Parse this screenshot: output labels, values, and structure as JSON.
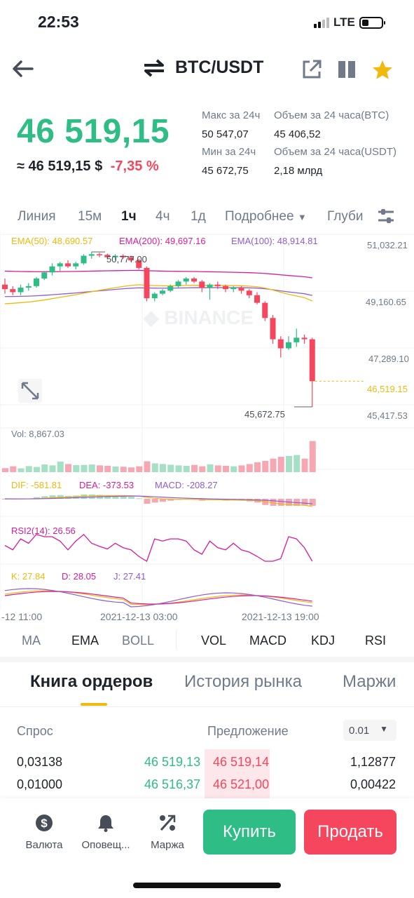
{
  "status": {
    "time": "22:53",
    "network": "LTE"
  },
  "header": {
    "pair": "BTC/USDT"
  },
  "price": {
    "last": "46 519,15",
    "usd": "≈ 46 519,15 $",
    "change": "-7,35 %",
    "high_label": "Макс за 24ч",
    "high": "50 547,07",
    "low_label": "Мин за 24ч",
    "low": "45 672,75",
    "vol_btc_label": "Объем за 24 часа(BTC)",
    "vol_btc": "45 406,52",
    "vol_usdt_label": "Объем за 24 часа(USDT)",
    "vol_usdt": "2,18 млрд"
  },
  "timeframes": {
    "line": "Линия",
    "m15": "15м",
    "h1": "1ч",
    "h4": "4ч",
    "d1": "1д",
    "more": "Подробнее",
    "depth": "Глуби"
  },
  "chart": {
    "ema50_label": "EMA(50): 48,690.57",
    "ema200_label": "EMA(200): 49,697.16",
    "ema100_label": "EMA(100): 48,914.81",
    "high_marker": "50,777.00",
    "low_marker": "45,672.75",
    "vol_label": "Vol: 8,867.03",
    "dif_label": "DIF: -581.81",
    "dea_label": "DEA: -373.53",
    "macd_label": "MACD: -208.27",
    "rsi_label": "RSI2(14): 26.56",
    "k_label": "K: 27.84",
    "d_label": "D: 28.05",
    "j_label": "J: 27.41",
    "time_labels": [
      "-12 11:00",
      "2021-12-13 03:00",
      "2021-12-13 19:00"
    ],
    "colors": {
      "up": "#2ebd85",
      "down": "#f6465d",
      "ema50": "#f0b90b",
      "ema200": "#d81b9c",
      "ema100": "#8e5bd6"
    }
  },
  "chart_data": {
    "type": "candlestick",
    "y_ticks": [
      "51,032.21",
      "49,160.65",
      "47,289.10",
      "45,417.53"
    ],
    "current_price": "46,519.15",
    "ylim": [
      45417.53,
      51032.21
    ],
    "candles": [
      [
        49700,
        49900,
        49400,
        49550
      ],
      [
        49550,
        49650,
        49350,
        49450
      ],
      [
        49450,
        49700,
        49350,
        49600
      ],
      [
        49600,
        49750,
        49500,
        49650
      ],
      [
        49650,
        49950,
        49600,
        49900
      ],
      [
        49900,
        50150,
        49850,
        50100
      ],
      [
        50100,
        50400,
        50000,
        50300
      ],
      [
        50300,
        50450,
        50150,
        50400
      ],
      [
        50400,
        50500,
        50250,
        50300
      ],
      [
        50300,
        50450,
        50200,
        50400
      ],
      [
        50400,
        50700,
        50350,
        50650
      ],
      [
        50650,
        50777,
        50550,
        50700
      ],
      [
        50700,
        50750,
        50600,
        50680
      ],
      [
        50680,
        50720,
        50550,
        50600
      ],
      [
        50600,
        50700,
        50500,
        50650
      ],
      [
        50650,
        50700,
        50550,
        50600
      ],
      [
        50600,
        50650,
        50450,
        50500
      ],
      [
        50500,
        50550,
        50200,
        50250
      ],
      [
        50250,
        50300,
        49150,
        49250
      ],
      [
        49250,
        49450,
        49150,
        49400
      ],
      [
        49400,
        49550,
        49350,
        49500
      ],
      [
        49500,
        49700,
        49450,
        49650
      ],
      [
        49650,
        49850,
        49600,
        49800
      ],
      [
        49800,
        49950,
        49700,
        49900
      ],
      [
        49900,
        49950,
        49750,
        49800
      ],
      [
        49800,
        49850,
        49450,
        49600
      ],
      [
        49600,
        49750,
        49200,
        49700
      ],
      [
        49700,
        49800,
        49550,
        49650
      ],
      [
        49650,
        49700,
        49450,
        49550
      ],
      [
        49550,
        49650,
        49450,
        49600
      ],
      [
        49600,
        49650,
        49400,
        49500
      ],
      [
        49500,
        49550,
        49250,
        49350
      ],
      [
        49350,
        49450,
        49050,
        49100
      ],
      [
        49100,
        49150,
        48500,
        48600
      ],
      [
        48600,
        48700,
        47750,
        47900
      ],
      [
        47900,
        48000,
        47300,
        47600
      ],
      [
        47600,
        48000,
        47550,
        47800
      ],
      [
        47800,
        48250,
        47650,
        47950
      ],
      [
        47950,
        48050,
        47750,
        47900
      ],
      [
        47900,
        47950,
        45672.75,
        46519.15
      ]
    ],
    "volume": [
      90,
      130,
      85,
      135,
      115,
      170,
      150,
      235,
      180,
      155,
      160,
      170,
      150,
      140,
      125,
      120,
      105,
      130,
      240,
      195,
      180,
      165,
      150,
      140,
      160,
      130,
      175,
      150,
      140,
      130,
      150,
      180,
      220,
      250,
      300,
      340,
      360,
      380,
      300,
      690
    ],
    "volume_max": 700
  },
  "indicators": {
    "ma": "MA",
    "ema": "EMA",
    "boll": "BOLL",
    "vol": "VOL",
    "macd": "MACD",
    "kdj": "KDJ",
    "rsi": "RSI"
  },
  "orderbook": {
    "tabs": [
      "Книга ордеров",
      "История рынка",
      "Маржи"
    ],
    "bid_label": "Спрос",
    "ask_label": "Предложение",
    "decimals": "0.01",
    "rows": [
      {
        "bid_qty": "0,03138",
        "bid_price": "46 519,13",
        "ask_price": "46 519,14",
        "ask_qty": "1,12877"
      },
      {
        "bid_qty": "0,01000",
        "bid_price": "46 516,37",
        "ask_price": "46 521,00",
        "ask_qty": "0,00422"
      }
    ]
  },
  "bottom": {
    "currency": "Валюта",
    "alerts": "Оповещ...",
    "margin": "Маржа",
    "buy": "Купить",
    "sell": "Продать"
  }
}
